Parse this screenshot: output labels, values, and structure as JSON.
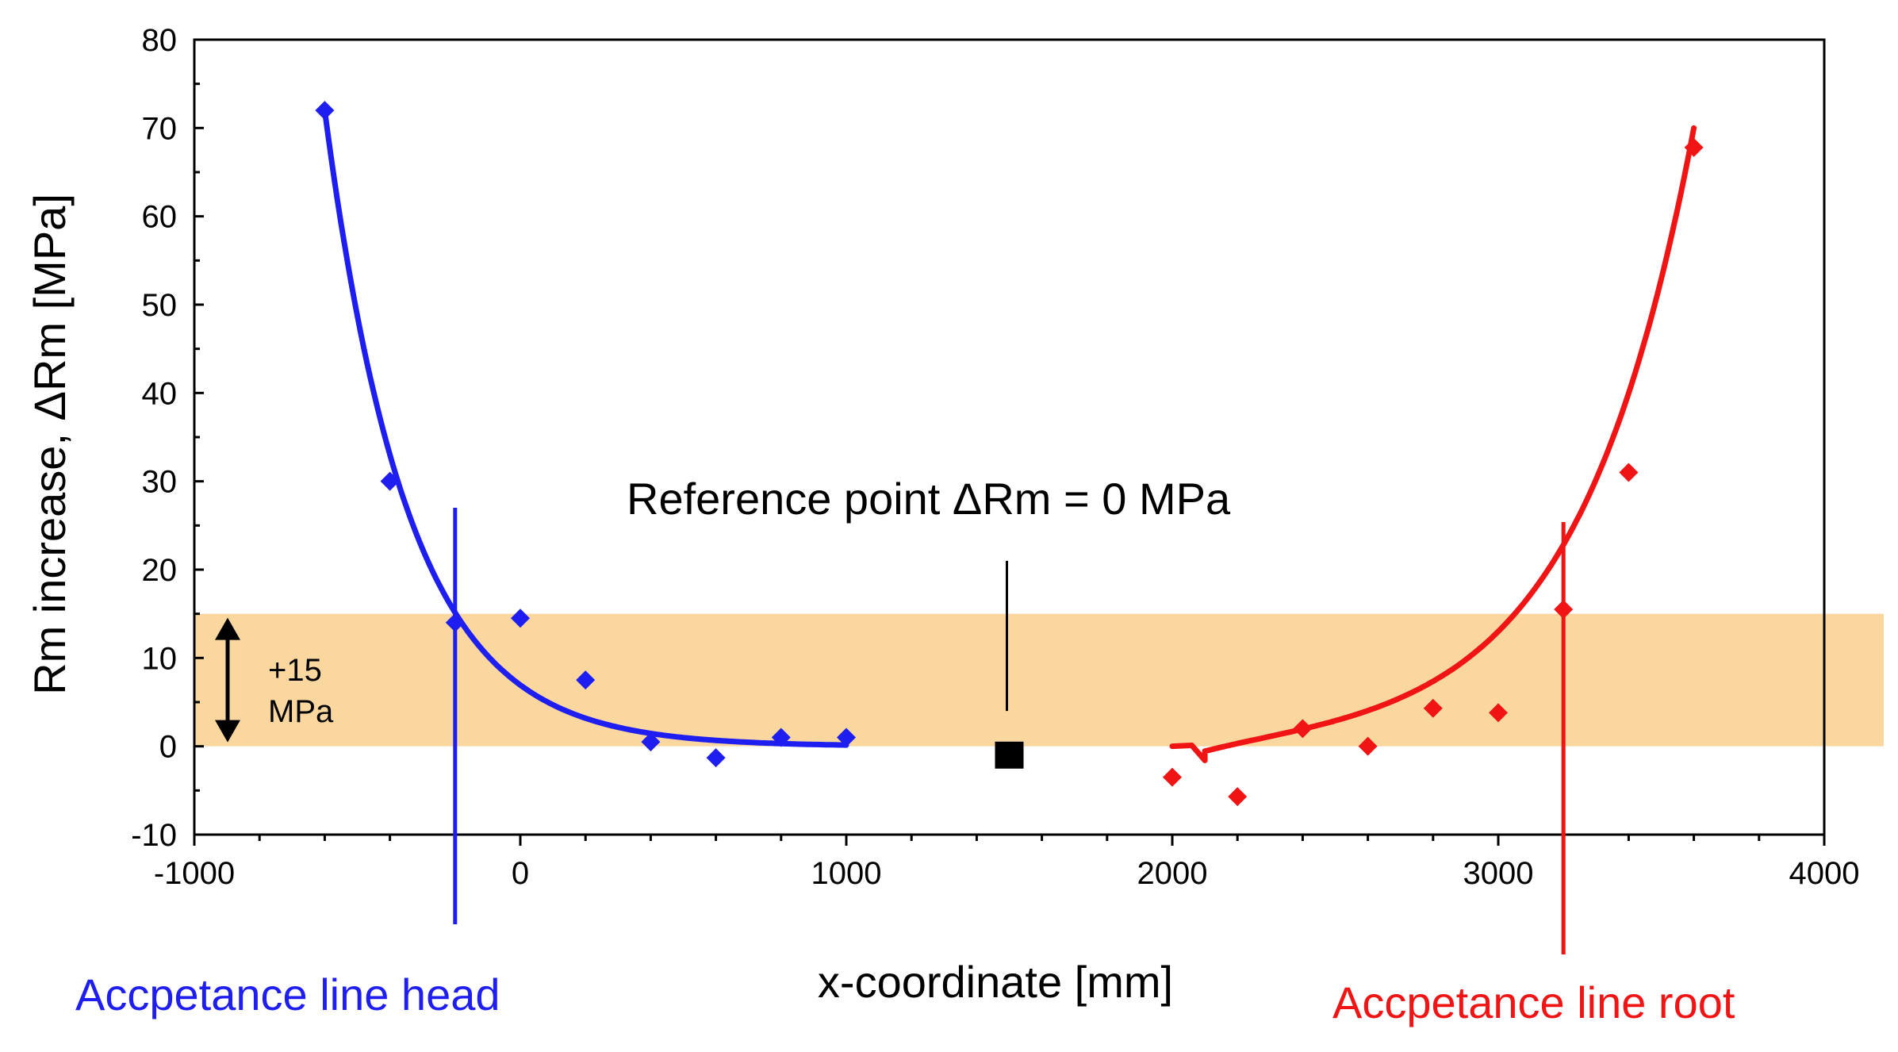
{
  "chart_data": {
    "type": "scatter",
    "xlabel": "x-coordinate [mm]",
    "ylabel": "Rm increase, ΔRm [MPa]",
    "xlim": [
      -1000,
      4000
    ],
    "ylim": [
      -10,
      80
    ],
    "x_ticks": [
      -1000,
      0,
      1000,
      2000,
      3000,
      4000
    ],
    "y_ticks": [
      -10,
      0,
      10,
      20,
      30,
      40,
      50,
      60,
      70,
      80
    ],
    "band": {
      "y_from": 0,
      "y_to": 15,
      "color": "#FBD7A0",
      "label_line1": "+15",
      "label_line2": "MPa"
    },
    "reference": {
      "label": "Reference point ΔRm = 0 MPa",
      "x": 1500,
      "y": -1,
      "line_top": 21,
      "line_bottom": 4
    },
    "head": {
      "name": "Accpetance line head",
      "color": "#1E1EF0",
      "acceptance_x": -200,
      "points": [
        {
          "x": -600,
          "y": 72
        },
        {
          "x": -400,
          "y": 30
        },
        {
          "x": -200,
          "y": 14
        },
        {
          "x": 0,
          "y": 14.5
        },
        {
          "x": 200,
          "y": 7.5
        },
        {
          "x": 400,
          "y": 0.5
        },
        {
          "x": 600,
          "y": -1.3
        },
        {
          "x": 800,
          "y": 1
        },
        {
          "x": 1000,
          "y": 1
        }
      ],
      "fit": {
        "x_from": -600,
        "x_to": 1000,
        "a": 72,
        "k": 0.0039
      }
    },
    "root": {
      "name": "Accpetance line root",
      "color": "#F01414",
      "acceptance_x": 3200,
      "points": [
        {
          "x": 2000,
          "y": -3.5
        },
        {
          "x": 2200,
          "y": -5.7
        },
        {
          "x": 2400,
          "y": 2
        },
        {
          "x": 2600,
          "y": 0
        },
        {
          "x": 2800,
          "y": 4.3
        },
        {
          "x": 3000,
          "y": 3.8
        },
        {
          "x": 3200,
          "y": 15.5
        },
        {
          "x": 3400,
          "y": 31
        },
        {
          "x": 3600,
          "y": 67.8
        }
      ],
      "fit": {
        "x_from": 2100,
        "x_to": 3600,
        "a": 70,
        "k": 0.0028
      }
    }
  }
}
